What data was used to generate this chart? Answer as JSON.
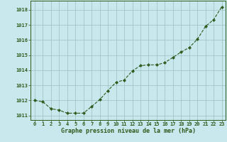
{
  "x": [
    0,
    1,
    2,
    3,
    4,
    5,
    6,
    7,
    8,
    9,
    10,
    11,
    12,
    13,
    14,
    15,
    16,
    17,
    18,
    19,
    20,
    21,
    22,
    23
  ],
  "y": [
    1012.0,
    1011.9,
    1011.45,
    1011.35,
    1011.15,
    1011.15,
    1011.15,
    1011.6,
    1012.05,
    1012.65,
    1013.2,
    1013.35,
    1013.95,
    1014.3,
    1014.35,
    1014.35,
    1014.5,
    1014.85,
    1015.2,
    1015.5,
    1016.05,
    1016.9,
    1017.35,
    1018.2
  ],
  "line_color": "#2d5a1b",
  "marker": "D",
  "marker_size": 2.2,
  "bg_color": "#c8e8ee",
  "grid_color": "#9bbfbf",
  "xlabel": "Graphe pression niveau de la mer (hPa)",
  "xlabel_color": "#2d5a1b",
  "tick_color": "#2d5a1b",
  "ylim": [
    1010.7,
    1018.6
  ],
  "xlim": [
    -0.5,
    23.5
  ],
  "yticks": [
    1011,
    1012,
    1013,
    1014,
    1015,
    1016,
    1017,
    1018
  ],
  "xticks": [
    0,
    1,
    2,
    3,
    4,
    5,
    6,
    7,
    8,
    9,
    10,
    11,
    12,
    13,
    14,
    15,
    16,
    17,
    18,
    19,
    20,
    21,
    22,
    23
  ],
  "tick_fontsize": 5.0,
  "xlabel_fontsize": 6.0
}
